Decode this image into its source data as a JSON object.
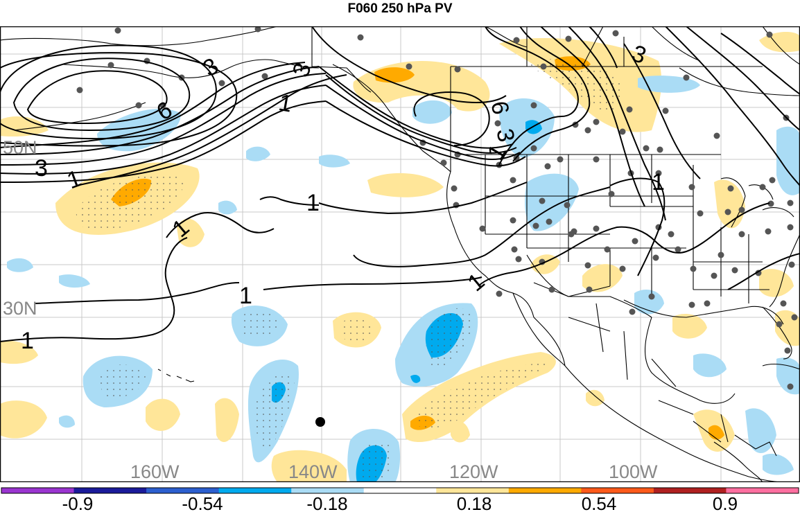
{
  "title": "F060 250 hPa PV",
  "map": {
    "lon_labels": [
      "160W",
      "140W",
      "120W",
      "100W"
    ],
    "lat_labels": [
      "50N",
      "30N"
    ],
    "contour_labels": [
      "3",
      "3",
      "3",
      "6",
      "6",
      "1",
      "1",
      "1",
      "1",
      "1",
      "1",
      "1",
      "1",
      "3",
      "1"
    ]
  },
  "colorbar": {
    "labels": [
      "-0.9",
      "-0.54",
      "-0.18",
      "0.18",
      "0.54",
      "0.9"
    ],
    "colors": [
      "#9a35d0",
      "#1a1a9a",
      "#2c5fcf",
      "#00aaee",
      "#aadcf5",
      "#ffffff",
      "#ffe699",
      "#ffaa00",
      "#ff5a1a",
      "#b02020",
      "#ff6fa0"
    ]
  },
  "colors": {
    "neg_light": "#aadcf5",
    "neg_mid": "#00aaee",
    "pos_light": "#ffe699",
    "pos_mid": "#ffaa00",
    "pos_strong": "#ff5a1a"
  }
}
